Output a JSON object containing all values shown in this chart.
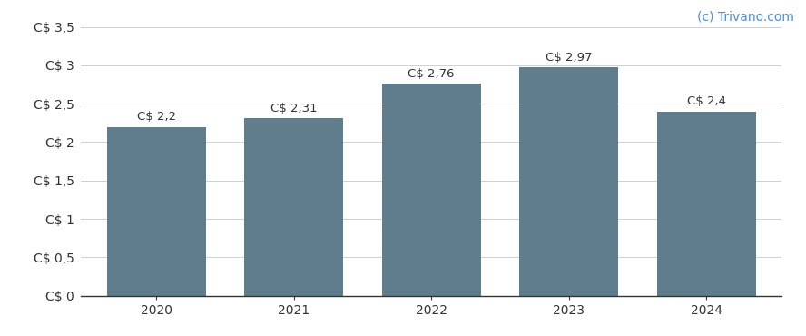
{
  "categories": [
    "2020",
    "2021",
    "2022",
    "2023",
    "2024"
  ],
  "values": [
    2.2,
    2.31,
    2.76,
    2.97,
    2.4
  ],
  "labels": [
    "C$ 2,2",
    "C$ 2,31",
    "C$ 2,76",
    "C$ 2,97",
    "C$ 2,4"
  ],
  "bar_color": "#5f7d8c",
  "background_color": "#ffffff",
  "ylim": [
    0,
    3.5
  ],
  "yticks": [
    0,
    0.5,
    1.0,
    1.5,
    2.0,
    2.5,
    3.0,
    3.5
  ],
  "ytick_labels": [
    "C$ 0",
    "C$ 0,5",
    "C$ 1",
    "C$ 1,5",
    "C$ 2",
    "C$ 2,5",
    "C$ 3",
    "C$ 3,5"
  ],
  "watermark": "(c) Trivano.com",
  "watermark_color": "#4a90d9",
  "grid_color": "#d0d0d0",
  "label_fontsize": 9.5,
  "tick_fontsize": 10,
  "watermark_fontsize": 10,
  "bar_width": 0.72
}
